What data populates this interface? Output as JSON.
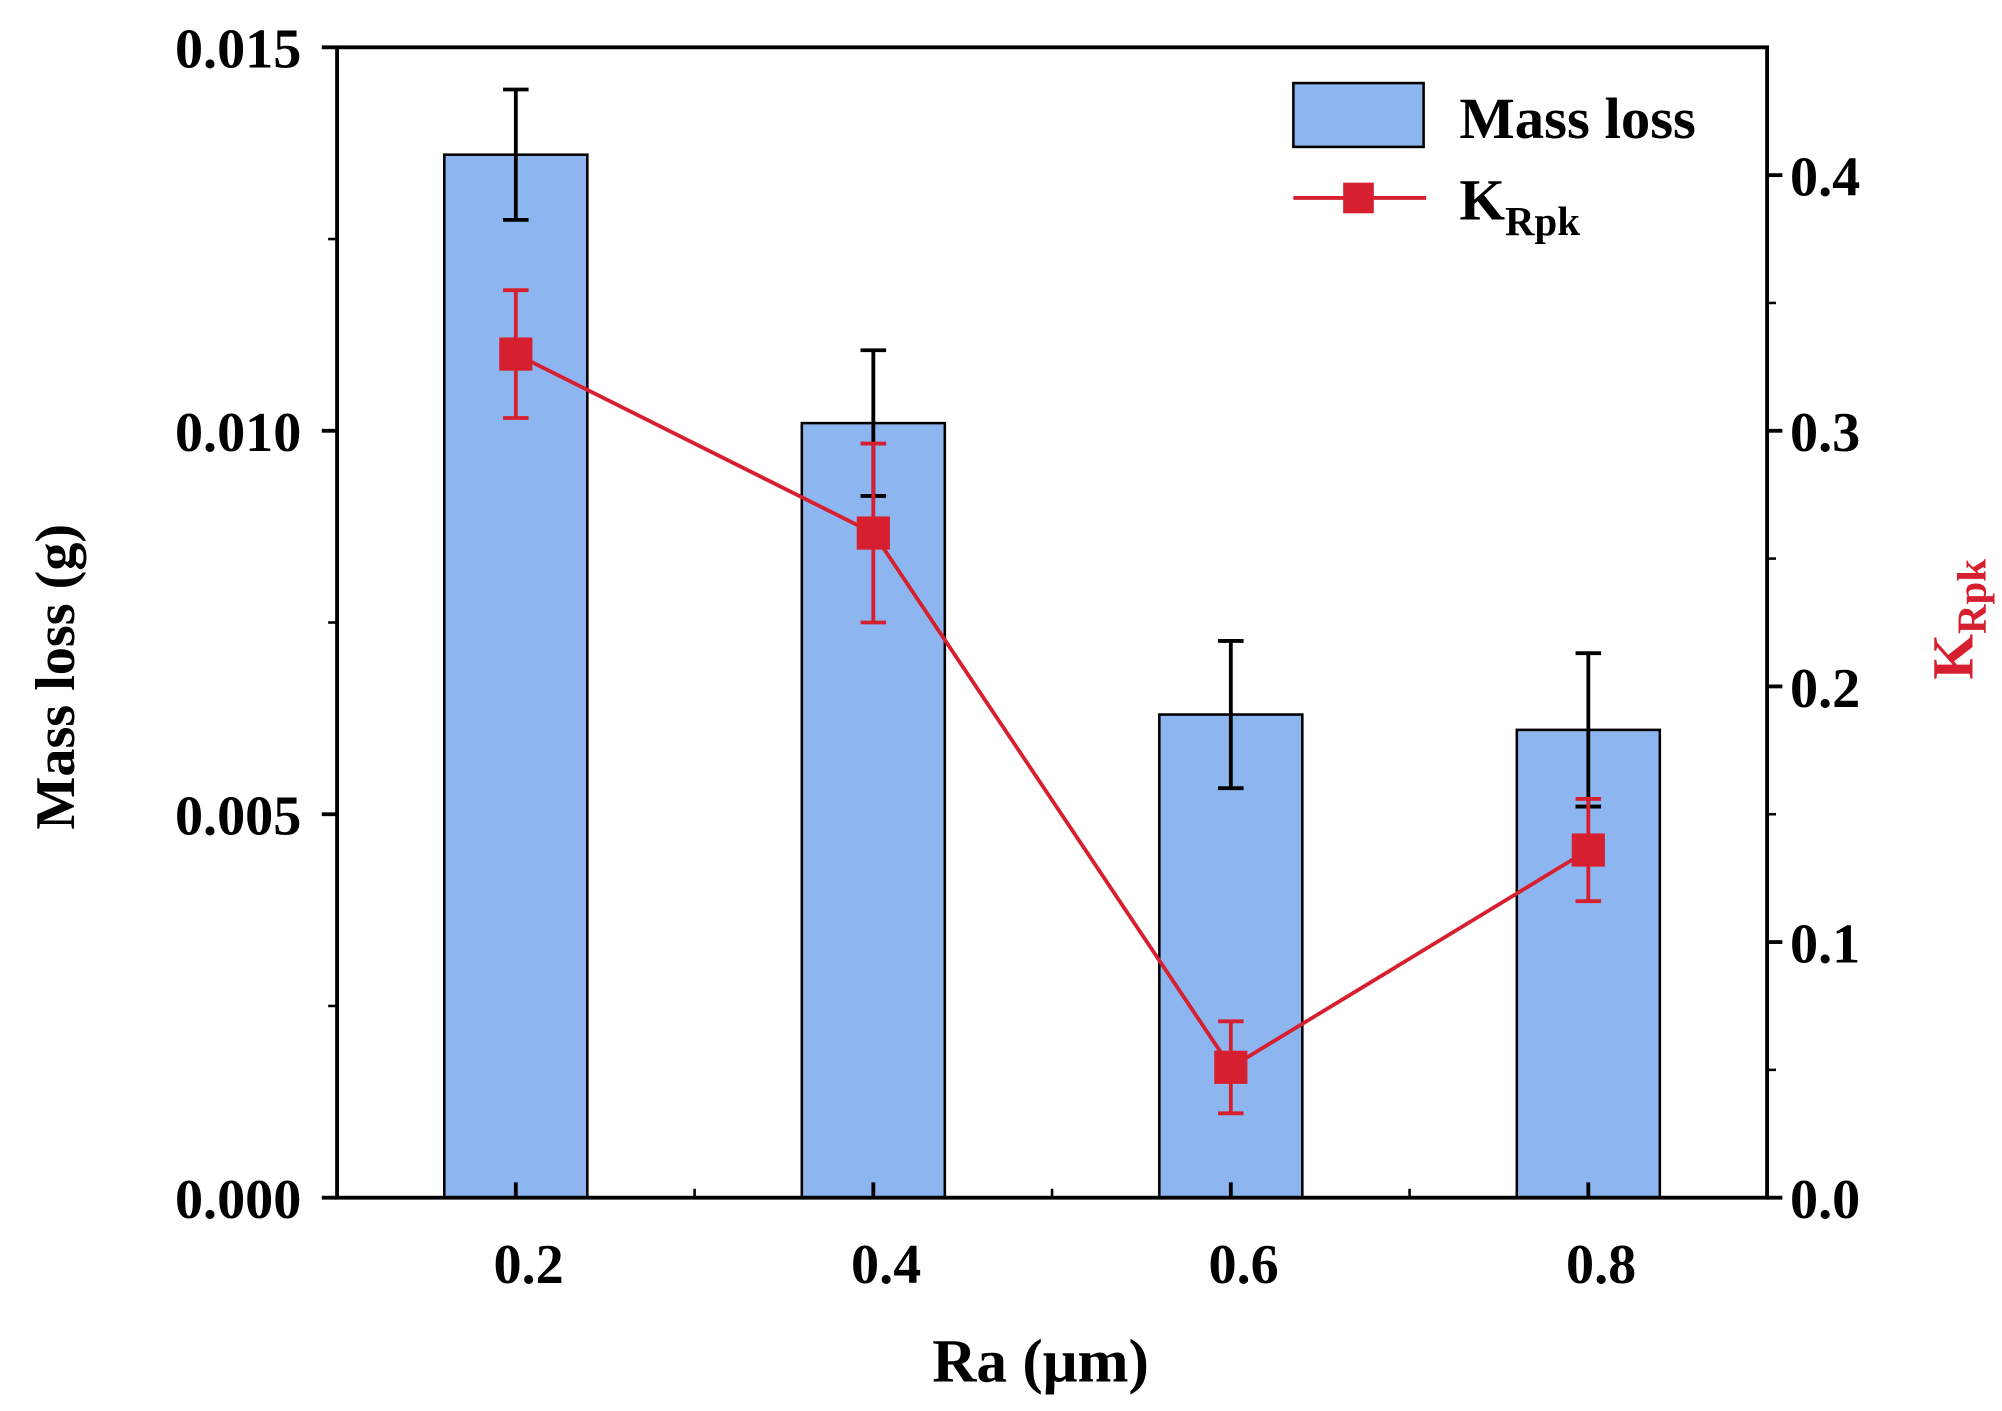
{
  "chart_data": {
    "type": "bar",
    "xlabel": "Ra (μm)",
    "ylabel": "Mass loss (g)",
    "y2label": {
      "main": "K",
      "sub": "Rpk"
    },
    "categories": [
      "0.2",
      "0.4",
      "0.6",
      "0.8"
    ],
    "x": [
      0.2,
      0.4,
      0.6,
      0.8
    ],
    "xlim": [
      0.1,
      0.9
    ],
    "ylim": [
      0,
      0.015
    ],
    "y2lim": [
      0,
      0.45
    ],
    "yticks": [
      "0.000",
      "0.005",
      "0.010",
      "0.015"
    ],
    "y2ticks": [
      "0.0",
      "0.1",
      "0.2",
      "0.3",
      "0.4"
    ],
    "series": [
      {
        "name": "Mass loss",
        "type": "bar",
        "axis": "left",
        "color": "#8db6f0",
        "values": [
          0.0136,
          0.0101,
          0.0063,
          0.0061
        ],
        "errors": [
          0.00085,
          0.00095,
          0.00096,
          0.001
        ]
      },
      {
        "name": "KRpk",
        "legend_main": "K",
        "legend_sub": "Rpk",
        "type": "line",
        "axis": "right",
        "color": "#d7202f",
        "values": [
          0.33,
          0.26,
          0.051,
          0.136
        ],
        "errors": [
          0.025,
          0.035,
          0.018,
          0.02
        ]
      }
    ],
    "legend_position": "top-right",
    "grid": false
  }
}
